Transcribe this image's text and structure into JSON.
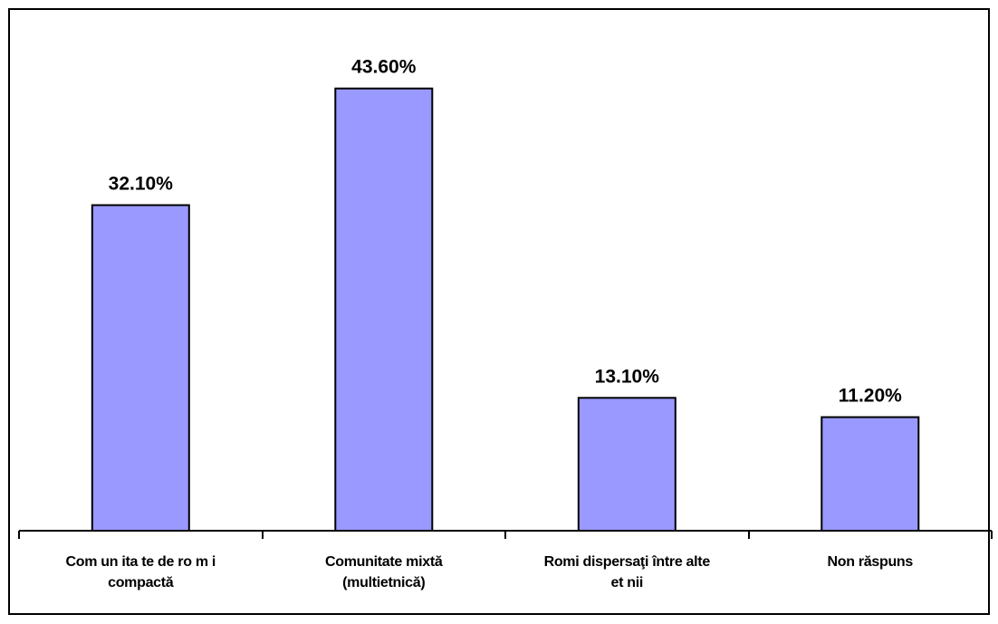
{
  "chart_data": {
    "type": "bar",
    "categories": [
      [
        "Com un ita te  de  ro m i",
        "compactă"
      ],
      [
        "Comunitate   mixtă",
        "(multietnică)"
      ],
      [
        "Romi dispersaţi între alte",
        "et nii"
      ],
      [
        "Non răspuns"
      ]
    ],
    "values": [
      32.1,
      43.6,
      13.1,
      11.2
    ],
    "data_labels": [
      "32.10%",
      "43.60%",
      "13.10%",
      "11.20%"
    ],
    "ylim": [
      0,
      50
    ],
    "bar_color": "#9999ff",
    "bar_stroke": "#000000",
    "grid": false,
    "legend": "none"
  }
}
